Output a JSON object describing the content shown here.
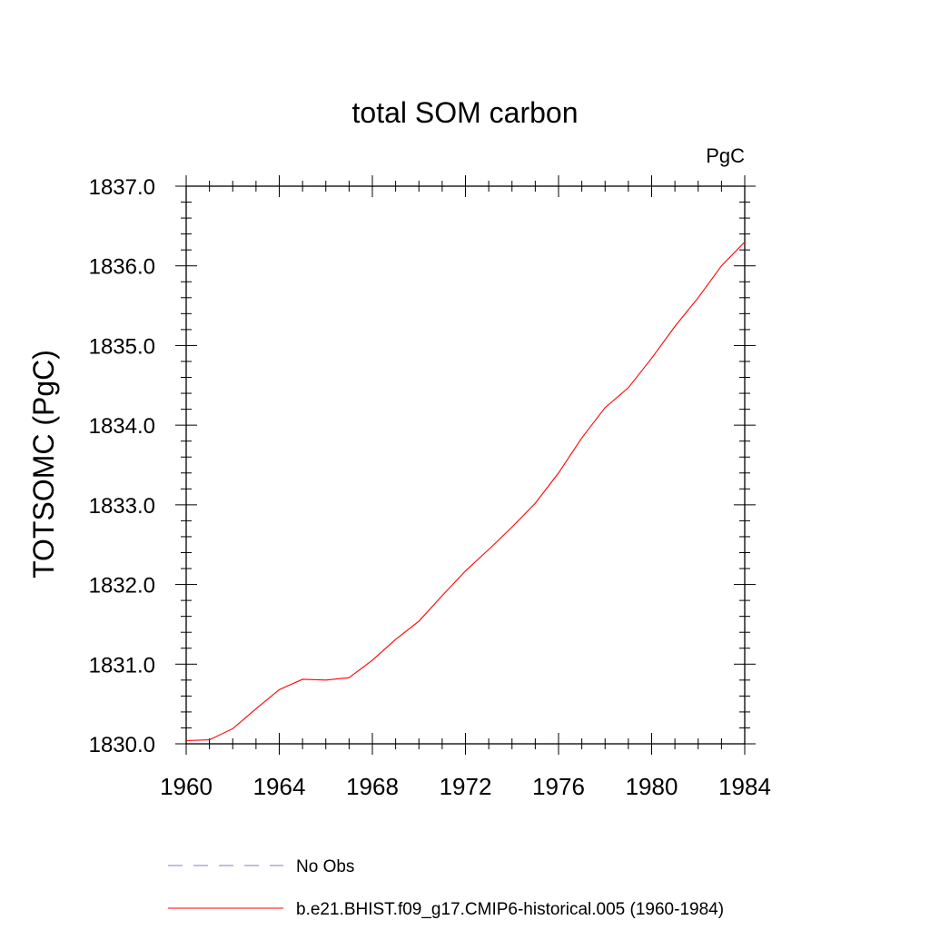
{
  "chart_data": {
    "type": "line",
    "title": "total SOM carbon",
    "units": "PgC",
    "xlabel": "",
    "ylabel": "TOTSOMC  (PgC)",
    "xlim": [
      1960,
      1984
    ],
    "ylim": [
      1830.0,
      1837.0
    ],
    "x_ticks": [
      1960,
      1964,
      1968,
      1972,
      1976,
      1980,
      1984
    ],
    "x_tick_labels": [
      "1960",
      "1964",
      "1968",
      "1972",
      "1976",
      "1980",
      "1984"
    ],
    "y_ticks": [
      1830.0,
      1831.0,
      1832.0,
      1833.0,
      1834.0,
      1835.0,
      1836.0,
      1837.0
    ],
    "y_tick_labels": [
      "1830.0",
      "1831.0",
      "1832.0",
      "1833.0",
      "1834.0",
      "1835.0",
      "1836.0",
      "1837.0"
    ],
    "grid": false,
    "legend_position": "bottom",
    "series": [
      {
        "name": "No Obs",
        "color": "#8080c0",
        "style": "dashed",
        "x": [],
        "values": []
      },
      {
        "name": "b.e21.BHIST.f09_g17.CMIP6-historical.005 (1960-1984)",
        "color": "#ff0000",
        "style": "solid",
        "x": [
          1960,
          1961,
          1962,
          1963,
          1964,
          1965,
          1966,
          1967,
          1968,
          1969,
          1970,
          1971,
          1972,
          1973,
          1974,
          1975,
          1976,
          1977,
          1978,
          1979,
          1980,
          1981,
          1982,
          1983,
          1984
        ],
        "values": [
          1830.04,
          1830.05,
          1830.19,
          1830.44,
          1830.68,
          1830.81,
          1830.8,
          1830.83,
          1831.05,
          1831.31,
          1831.54,
          1831.86,
          1832.17,
          1832.44,
          1832.72,
          1833.02,
          1833.4,
          1833.84,
          1834.22,
          1834.47,
          1834.84,
          1835.24,
          1835.6,
          1836.0,
          1836.3
        ]
      }
    ]
  }
}
